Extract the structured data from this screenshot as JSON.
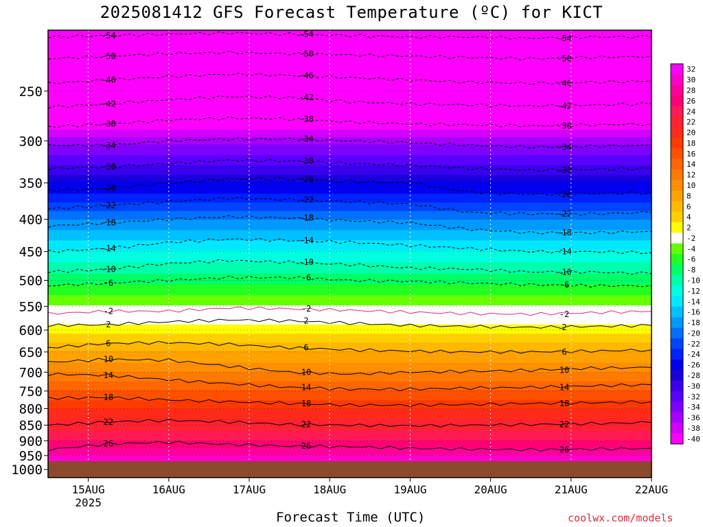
{
  "title": "2025081412 GFS Forecast Temperature (ºC) for KICT",
  "credit": "coolwx.com/models",
  "chart_data": {
    "type": "heatmap",
    "title": "2025081412 GFS Forecast Temperature (ºC) for KICT",
    "xlabel": "Forecast Time (UTC)",
    "ylabel": "",
    "x_ticks": [
      {
        "label": "15AUG",
        "sub": "2025",
        "hour": 12
      },
      {
        "label": "16AUG",
        "sub": "",
        "hour": 36
      },
      {
        "label": "17AUG",
        "sub": "",
        "hour": 60
      },
      {
        "label": "18AUG",
        "sub": "",
        "hour": 84
      },
      {
        "label": "19AUG",
        "sub": "",
        "hour": 108
      },
      {
        "label": "20AUG",
        "sub": "",
        "hour": 132
      },
      {
        "label": "21AUG",
        "sub": "",
        "hour": 156
      },
      {
        "label": "22AUG",
        "sub": "",
        "hour": 180
      }
    ],
    "x_range_hours": [
      0,
      180
    ],
    "y_ticks": [
      250,
      300,
      350,
      400,
      450,
      500,
      550,
      600,
      650,
      700,
      750,
      800,
      850,
      900,
      950,
      1000
    ],
    "y_range_hPa": [
      200,
      1030
    ],
    "y_scale": "log",
    "ground_level_hPa": 970,
    "grid": "dotted",
    "colorbar_ticks": [
      32,
      30,
      28,
      26,
      24,
      22,
      20,
      18,
      16,
      14,
      12,
      10,
      8,
      6,
      4,
      2,
      -2,
      -4,
      -6,
      -8,
      -10,
      -12,
      -14,
      -16,
      -18,
      -20,
      -22,
      -24,
      -26,
      -28,
      -30,
      -32,
      -34,
      -36,
      -38,
      -40
    ],
    "colorbar_colors": [
      "#ff00ff",
      "#ff00cc",
      "#ff0099",
      "#ff0077",
      "#ff1a55",
      "#ff2233",
      "#ff2a1a",
      "#ff3a00",
      "#ff5000",
      "#ff6600",
      "#ff7a00",
      "#ff8e00",
      "#ffa200",
      "#ffb800",
      "#ffd000",
      "#ffff00",
      "#ffffff",
      "#66ff00",
      "#22ff22",
      "#00ff66",
      "#00ffaa",
      "#00ffe0",
      "#00e8ff",
      "#00c0ff",
      "#0099ff",
      "#0070ff",
      "#0044ff",
      "#0022ff",
      "#0000ee",
      "#1a00dd",
      "#3a00ee",
      "#5a00ff",
      "#8000ff",
      "#a800ff",
      "#d200ff",
      "#ff00ff"
    ],
    "series": [
      {
        "level": 32,
        "values": [
          0
        ]
      },
      {
        "level": -2,
        "pressure_hPa": [
          565,
          560,
          560,
          553,
          555,
          558,
          562,
          565,
          566,
          563,
          560
        ]
      },
      {
        "level": 2,
        "pressure_hPa": [
          590,
          588,
          582,
          578,
          580,
          585,
          590,
          592,
          594,
          592,
          590
        ]
      },
      {
        "level": 6,
        "pressure_hPa": [
          640,
          630,
          628,
          632,
          640,
          645,
          648,
          650,
          650,
          648,
          645
        ]
      },
      {
        "level": 10,
        "pressure_hPa": [
          675,
          668,
          670,
          685,
          700,
          705,
          700,
          698,
          695,
          690,
          688
        ]
      },
      {
        "level": 14,
        "pressure_hPa": [
          705,
          708,
          720,
          730,
          740,
          745,
          745,
          742,
          740,
          736,
          733
        ]
      },
      {
        "level": 18,
        "pressure_hPa": [
          770,
          768,
          775,
          780,
          785,
          790,
          790,
          788,
          785,
          783,
          780
        ]
      },
      {
        "level": 22,
        "pressure_hPa": [
          850,
          840,
          835,
          840,
          848,
          850,
          852,
          850,
          848,
          845,
          842
        ]
      },
      {
        "level": 26,
        "pressure_hPa": [
          930,
          910,
          905,
          912,
          918,
          920,
          925,
          928,
          930,
          928,
          925
        ]
      },
      {
        "level": -6,
        "pressure_hPa": [
          510,
          505,
          500,
          495,
          495,
          500,
          502,
          505,
          508,
          510,
          510
        ]
      },
      {
        "level": -10,
        "pressure_hPa": [
          485,
          480,
          470,
          465,
          468,
          472,
          478,
          480,
          485,
          485,
          488
        ]
      },
      {
        "level": -14,
        "pressure_hPa": [
          450,
          445,
          435,
          430,
          432,
          435,
          440,
          445,
          450,
          450,
          452
        ]
      },
      {
        "level": -18,
        "pressure_hPa": [
          410,
          405,
          400,
          396,
          398,
          402,
          405,
          415,
          420,
          420,
          418
        ]
      },
      {
        "level": -22,
        "pressure_hPa": [
          385,
          380,
          375,
          370,
          372,
          375,
          378,
          390,
          392,
          392,
          390
        ]
      },
      {
        "level": -26,
        "pressure_hPa": [
          360,
          357,
          350,
          345,
          345,
          348,
          350,
          362,
          365,
          364,
          363
        ]
      },
      {
        "level": -30,
        "pressure_hPa": [
          332,
          330,
          326,
          322,
          323,
          326,
          328,
          332,
          334,
          333,
          332
        ]
      },
      {
        "level": -34,
        "pressure_hPa": [
          305,
          305,
          300,
          298,
          298,
          300,
          302,
          305,
          307,
          306,
          305
        ]
      },
      {
        "level": -38,
        "pressure_hPa": [
          285,
          282,
          278,
          276,
          277,
          280,
          282,
          283,
          284,
          283,
          282
        ]
      },
      {
        "level": -42,
        "pressure_hPa": [
          265,
          262,
          258,
          255,
          256,
          260,
          262,
          263,
          264,
          263,
          262
        ]
      },
      {
        "level": -46,
        "pressure_hPa": [
          243,
          240,
          237,
          235,
          236,
          238,
          240,
          242,
          243,
          242,
          241
        ]
      },
      {
        "level": -50,
        "pressure_hPa": [
          222,
          220,
          218,
          217,
          218,
          219,
          220,
          221,
          222,
          221,
          220
        ]
      },
      {
        "level": -54,
        "pressure_hPa": [
          205,
          204,
          203,
          202,
          203,
          204,
          205,
          205,
          206,
          205,
          205
        ]
      }
    ],
    "contour_hours": [
      0,
      18,
      36,
      54,
      72,
      90,
      108,
      126,
      144,
      162,
      180
    ],
    "contour_labels": [
      "-54",
      "-50",
      "-46",
      "-42",
      "-38",
      "-34",
      "-30",
      "-26",
      "-22",
      "-18",
      "-14",
      "-10",
      "-6",
      "-2",
      "2",
      "6",
      "10",
      "14",
      "18",
      "22",
      "26"
    ]
  },
  "colors": {
    "ground": "#8b4a2b",
    "credit": "#e0283a"
  }
}
